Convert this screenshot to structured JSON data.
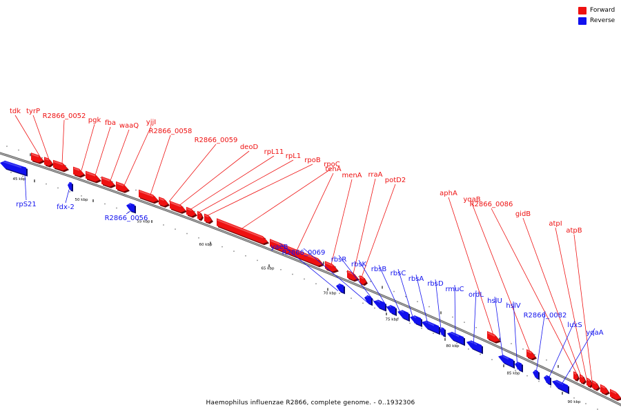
{
  "title": "Haemophilus influenzae R2866, complete genome. - 0..1932306",
  "legend": [
    {
      "label": "Forward",
      "color": "#ee1111"
    },
    {
      "label": "Reverse",
      "color": "#1111ee"
    }
  ],
  "colors": {
    "forward": "#ee1111",
    "reverse": "#1111ee",
    "backbone": "#888888"
  },
  "ticks": [
    "45 kbp",
    "50 kbp",
    "55 kbp",
    "60 kbp",
    "65 kbp",
    "70 kbp",
    "75 kbp",
    "80 kbp",
    "85 kbp",
    "90 kbp"
  ],
  "forward_genes": [
    "tdk",
    "tyrP",
    "R2866_0052",
    "pgk",
    "fba",
    "waaQ",
    "yjjI",
    "R2866_0058",
    "R2866_0059",
    "deoD",
    "rpL11",
    "rpL1",
    "rpoB",
    "rpoC",
    "tehA",
    "menA",
    "rraA",
    "potD2",
    "aphA",
    "yqaB",
    "R2866_0086",
    "gidB",
    "atpI",
    "atpB"
  ],
  "reverse_genes": [
    "rpS21",
    "fdx-2",
    "R2866_0056",
    "yaeB",
    "R2866_0069",
    "rbsR",
    "rbsK",
    "rbsB",
    "rbsC",
    "rbsA",
    "rbsD",
    "rmuC",
    "ordL",
    "hslU",
    "hslV",
    "R2866_0082",
    "luxS",
    "yqaA"
  ]
}
